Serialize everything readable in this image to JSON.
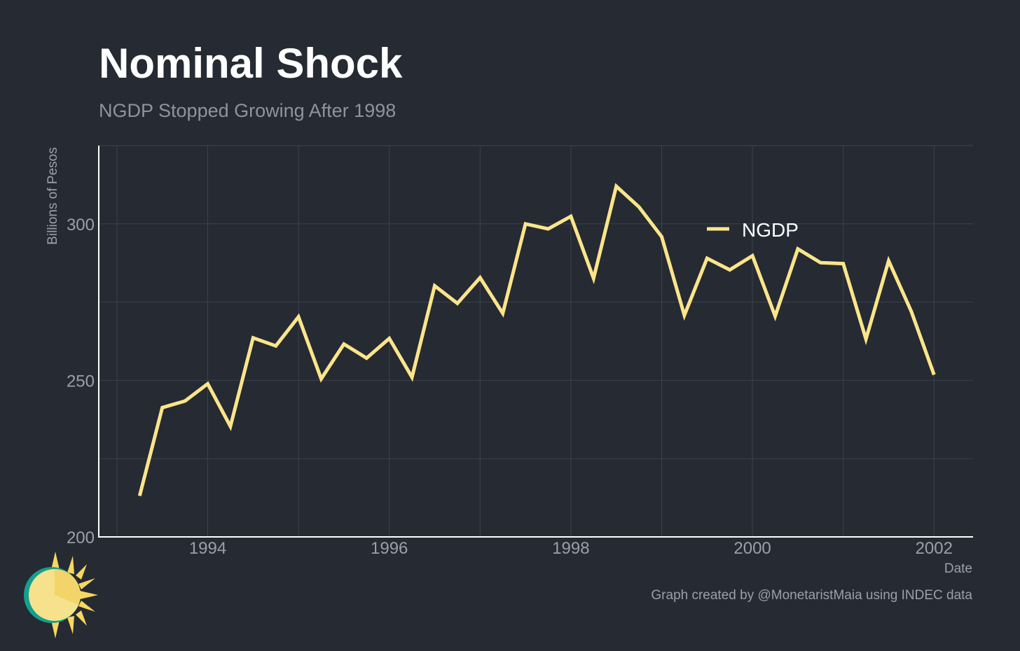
{
  "title": "Nominal Shock",
  "subtitle": "NGDP Stopped Growing After 1998",
  "caption": "Graph created by @MonetaristMaia using INDEC data",
  "logo_icon": "sun-icon",
  "colors": {
    "background": "#252a33",
    "line": "#fbe58a",
    "grid": "#3d424b",
    "axis": "#ffffff"
  },
  "chart_data": {
    "type": "line",
    "title": "Nominal Shock",
    "subtitle": "NGDP Stopped Growing After 1998",
    "xlabel": "Date",
    "ylabel": "Billions of Pesos",
    "xlim": [
      1992.8,
      2002.43
    ],
    "ylim": [
      200,
      325
    ],
    "xticks": [
      1994,
      1996,
      1998,
      2000,
      2002
    ],
    "xtick_labels": [
      "1994",
      "1996",
      "1998",
      "2000",
      "2002"
    ],
    "yticks": [
      200,
      250,
      300
    ],
    "ytick_labels": [
      "200",
      "250",
      "300"
    ],
    "grid": true,
    "legend_position": "top-right",
    "series": [
      {
        "name": "NGDP",
        "x": [
          1993.25,
          1993.5,
          1993.75,
          1994.0,
          1994.25,
          1994.5,
          1994.75,
          1995.0,
          1995.25,
          1995.5,
          1995.75,
          1996.0,
          1996.25,
          1996.5,
          1996.75,
          1997.0,
          1997.25,
          1997.5,
          1997.75,
          1998.0,
          1998.25,
          1998.5,
          1998.75,
          1999.0,
          1999.25,
          1999.5,
          1999.75,
          2000.0,
          2000.25,
          2000.5,
          2000.75,
          2001.0,
          2001.25,
          2001.5,
          2001.75,
          2002.0
        ],
        "values": [
          213.1,
          241.3,
          243.4,
          248.9,
          235.3,
          263.6,
          261.0,
          270.3,
          250.5,
          261.6,
          257.1,
          263.4,
          251.0,
          280.2,
          274.6,
          282.8,
          271.4,
          300.0,
          298.4,
          302.4,
          282.6,
          312.0,
          305.4,
          295.9,
          270.8,
          289.0,
          285.3,
          289.8,
          270.5,
          292.0,
          287.6,
          287.3,
          263.2,
          288.2,
          272.0,
          251.8
        ]
      }
    ]
  }
}
